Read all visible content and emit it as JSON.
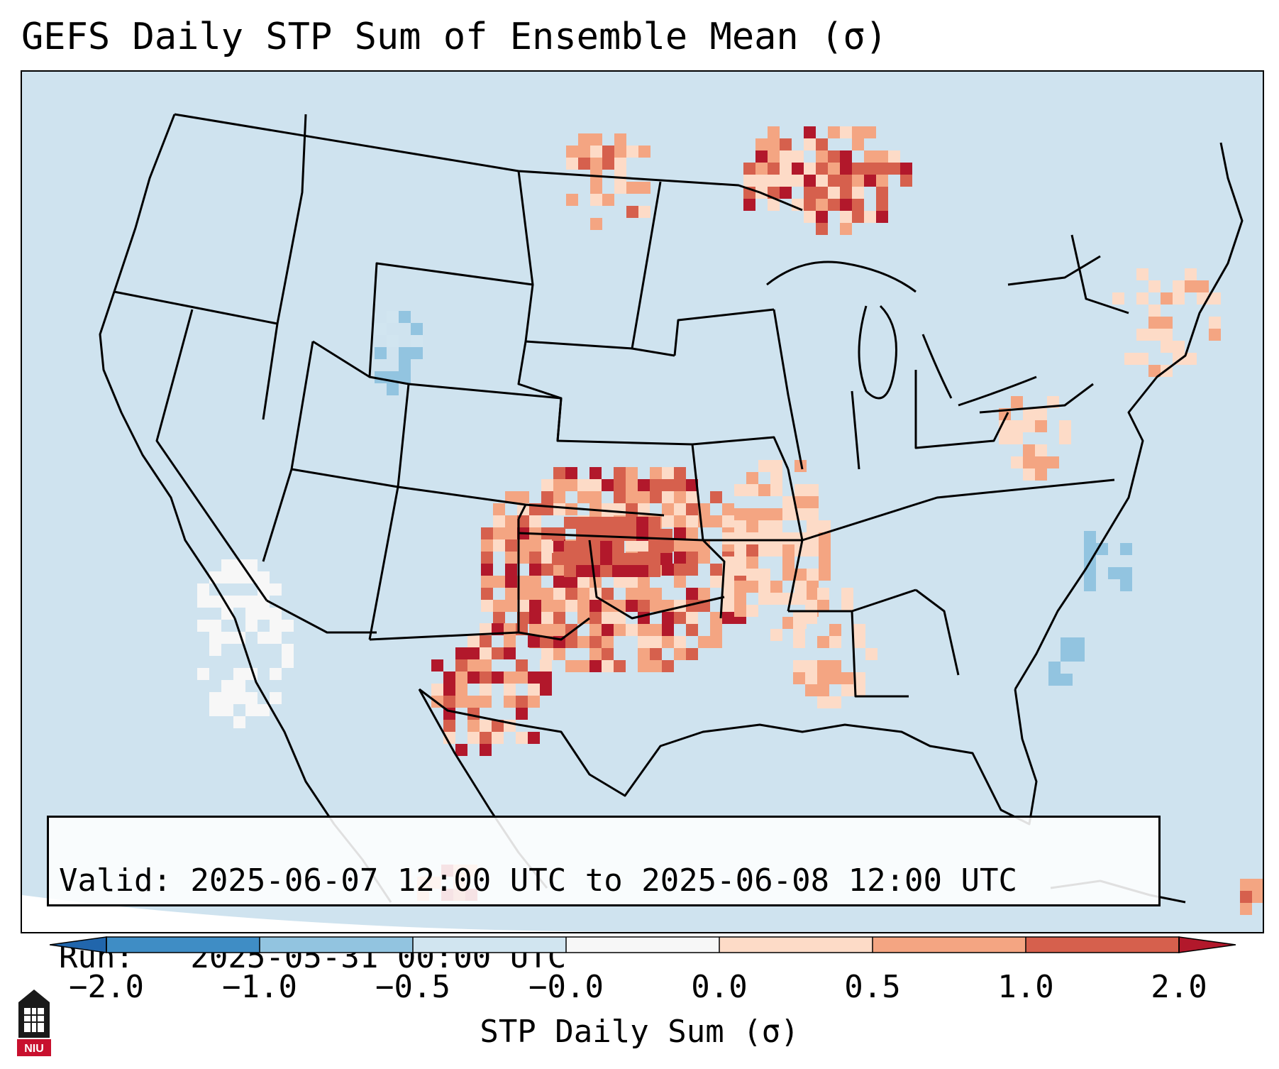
{
  "title": "GEFS Daily STP Sum of Ensemble Mean (σ)",
  "info": {
    "valid_line": "Valid: 2025-06-07 12:00 UTC to 2025-06-08 12:00 UTC",
    "run_line": "Run:   2025-05-31 00:00 UTC"
  },
  "colorbar": {
    "label": "STP Daily Sum (σ)",
    "ticks": [
      "−2.0",
      "−1.0",
      "−0.5",
      "−0.0",
      "0.0",
      "0.5",
      "1.0",
      "2.0"
    ],
    "colors": [
      "#3f8dc5",
      "#92c4e0",
      "#d1e5f0",
      "#f7f7f7",
      "#fddbc7",
      "#f4a582",
      "#d6604d",
      "#b2182b"
    ],
    "under_color": "#2166ac",
    "over_color": "#b2182b"
  },
  "map": {
    "ocean_color": "#cfe3ef",
    "land_color": "#d1e5f0",
    "highlight_region": "Southern Plains (Oklahoma / Texas / Kansas)"
  },
  "logo": {
    "text": "NIU",
    "color": "#c8102e"
  }
}
